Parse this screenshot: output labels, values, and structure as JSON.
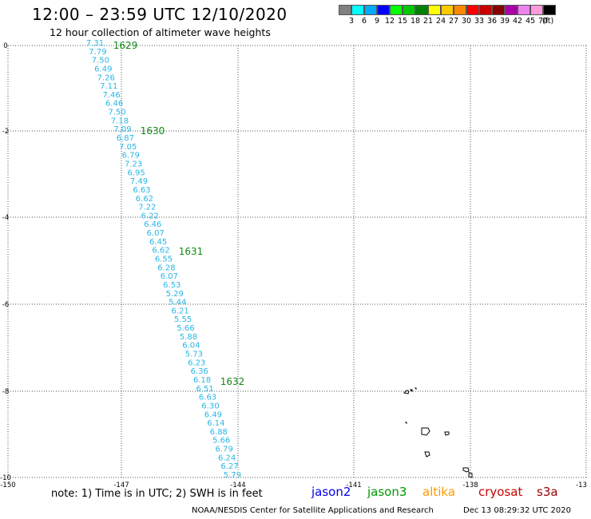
{
  "header": {
    "title": "12:00 – 23:59 UTC 12/10/2020",
    "subtitle": "12 hour collection of altimeter wave heights"
  },
  "scale": {
    "colors": [
      "#808080",
      "#00ffff",
      "#00aaff",
      "#0000ff",
      "#00ff00",
      "#00c800",
      "#008000",
      "#ffff00",
      "#ffc800",
      "#ff8800",
      "#ff0000",
      "#c80000",
      "#880000",
      "#aa00aa",
      "#ee82ee",
      "#ff99dd",
      "#000000"
    ],
    "labels": [
      "3",
      "6",
      "9",
      "12",
      "15",
      "18",
      "21",
      "24",
      "27",
      "30",
      "33",
      "36",
      "39",
      "42",
      "45",
      "70",
      "(ft)"
    ]
  },
  "map": {
    "lon_labels": [
      "-150",
      "-147",
      "-144",
      "-141",
      "-138",
      "-13"
    ],
    "lat_labels": [
      "0",
      "-2",
      "-4",
      "-6",
      "-8",
      "-10"
    ],
    "track_color": "#29b6e6",
    "time_color": "#118811",
    "wave_heights": [
      "7.31",
      "7.79",
      "7.50",
      "6.49",
      "7.26",
      "7.11",
      "7.46",
      "6.46",
      "7.50",
      "7.18",
      "7.09",
      "6.87",
      "7.05",
      "6.79",
      "7.23",
      "6.95",
      "7.49",
      "6.63",
      "6.62",
      "7.22",
      "6.22",
      "6.46",
      "6.07",
      "6.45",
      "6.62",
      "6.55",
      "6.28",
      "6.07",
      "6.53",
      "5.29",
      "5.44",
      "6.21",
      "5.55",
      "5.66",
      "5.88",
      "6.04",
      "5.73",
      "6.23",
      "6.36",
      "6.18",
      "6.51",
      "6.63",
      "6.30",
      "6.49",
      "6.14",
      "6.88",
      "5.66",
      "6.79",
      "6.24",
      "6.27",
      "5.79"
    ],
    "time_labels": [
      "1629",
      "1630",
      "1631",
      "1632"
    ]
  },
  "footer": {
    "note": "note: 1) Time is in UTC; 2) SWH is in feet",
    "satellites": [
      {
        "name": "jason2",
        "color": "#0000ee"
      },
      {
        "name": "jason3",
        "color": "#009900"
      },
      {
        "name": "altika",
        "color": "#ff9900"
      },
      {
        "name": "cryosat",
        "color": "#cc0000"
      },
      {
        "name": "s3a",
        "color": "#990000"
      }
    ],
    "credit": "NOAA/NESDIS Center for Satellite Applications and Research",
    "timestamp": "Dec 13 08:29:32 UTC 2020"
  }
}
